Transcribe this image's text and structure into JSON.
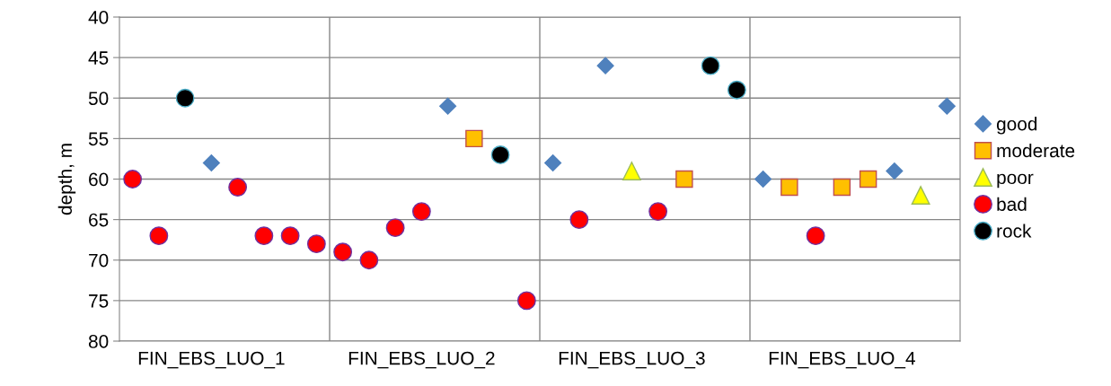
{
  "chart_data": {
    "type": "scatter",
    "ylabel": "depth, m",
    "categories": [
      null,
      null,
      null,
      "FIN_EBS_LUO_1",
      null,
      null,
      null,
      null,
      null,
      null,
      null,
      "FIN_EBS_LUO_2",
      null,
      null,
      null,
      null,
      null,
      null,
      null,
      "FIN_EBS_LUO_3",
      null,
      null,
      null,
      null,
      null,
      null,
      null,
      "FIN_EBS_LUO_4",
      null,
      null,
      null,
      null
    ],
    "ylim": [
      80,
      40
    ],
    "yticks": [
      40,
      45,
      50,
      55,
      60,
      65,
      70,
      75,
      80
    ],
    "grid": "y",
    "legend": "right",
    "series": [
      {
        "name": "good",
        "color": "#4f81bd",
        "marker": "diamond",
        "values": [
          null,
          null,
          null,
          58,
          null,
          null,
          null,
          null,
          null,
          null,
          null,
          null,
          51,
          null,
          null,
          null,
          58,
          null,
          46,
          null,
          null,
          null,
          null,
          null,
          60,
          null,
          null,
          null,
          null,
          59,
          null,
          51
        ]
      },
      {
        "name": "moderate",
        "color": "#ffc000",
        "marker": "square",
        "values": [
          null,
          null,
          null,
          null,
          null,
          null,
          null,
          null,
          null,
          null,
          null,
          null,
          null,
          55,
          null,
          null,
          null,
          null,
          null,
          null,
          null,
          60,
          null,
          null,
          null,
          61,
          null,
          61,
          60,
          null,
          null,
          null
        ]
      },
      {
        "name": "poor",
        "color": "#ffff00",
        "marker": "triangle",
        "values": [
          null,
          null,
          null,
          null,
          null,
          null,
          null,
          null,
          null,
          null,
          null,
          null,
          null,
          null,
          null,
          null,
          null,
          null,
          null,
          59,
          null,
          null,
          null,
          null,
          null,
          null,
          null,
          null,
          null,
          null,
          62,
          null
        ]
      },
      {
        "name": "bad",
        "color": "#ff0000",
        "marker": "circle",
        "values": [
          60,
          67,
          null,
          null,
          61,
          67,
          67,
          68,
          69,
          70,
          66,
          64,
          null,
          null,
          null,
          75,
          null,
          65,
          null,
          null,
          64,
          null,
          null,
          null,
          null,
          null,
          67,
          null,
          null,
          null,
          null,
          null
        ]
      },
      {
        "name": "rock",
        "color": "#000000",
        "marker": "circle",
        "values": [
          null,
          null,
          50,
          null,
          null,
          null,
          null,
          null,
          null,
          null,
          null,
          null,
          null,
          null,
          57,
          null,
          null,
          null,
          null,
          null,
          null,
          null,
          46,
          49,
          null,
          null,
          null,
          null,
          null,
          null,
          null,
          null
        ]
      }
    ]
  }
}
